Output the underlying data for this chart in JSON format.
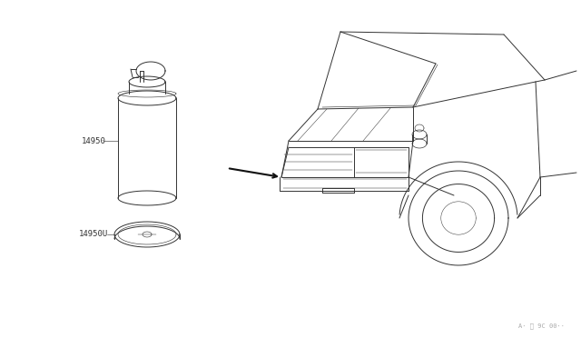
{
  "bg_color": "#ffffff",
  "line_color": "#333333",
  "line_width": 0.7,
  "label_14950": "14950",
  "label_14950u": "14950U",
  "watermark": "A· ˹ 9C 00··",
  "label_fontsize": 6.5
}
